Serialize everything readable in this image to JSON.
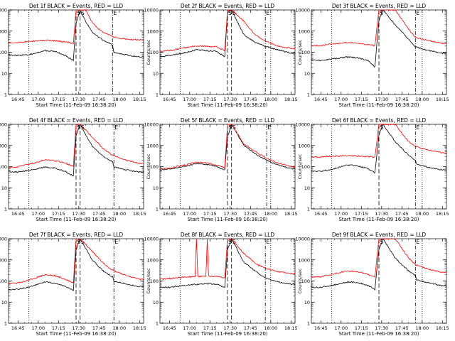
{
  "ticks_y_labels": [
    "1",
    "10",
    "100",
    "1000",
    "10000"
  ],
  "ticks_x_labels": [
    "16:45",
    "17:00",
    "17:15",
    "17:30",
    "17:45",
    "18:00",
    "18:15"
  ],
  "colors": {
    "events": "#000000",
    "lld": "#ff0000"
  },
  "chart_data": [
    {
      "type": "line",
      "title": "Det 1f BLACK = Events, RED = LLD",
      "xlabel": "Start Time (11-Feb-09 16:38:20)",
      "ylabel": "Counts/sec",
      "ylim": [
        1,
        10000
      ],
      "yscale": "log",
      "xlim": [
        "16:38",
        "18:18"
      ],
      "markers": [
        {
          "label": "",
          "x": "16:38",
          "style": "dotted"
        },
        {
          "label": "",
          "x": "16:53",
          "style": "dotted"
        },
        {
          "label": "S",
          "x": "17:28",
          "style": "dashed"
        },
        {
          "label": "S",
          "x": "17:31",
          "style": "dashed"
        },
        {
          "label": "E",
          "x": "17:55",
          "style": "dash-dot"
        }
      ],
      "series": [
        {
          "name": "Events",
          "color": "black",
          "x": [
            "16:38",
            "16:45",
            "16:55",
            "17:05",
            "17:12",
            "17:20",
            "17:26",
            "17:28",
            "17:31",
            "17:35",
            "17:40",
            "17:45",
            "17:50",
            "17:55",
            "17:56",
            "18:05",
            "18:15"
          ],
          "values": [
            75,
            70,
            80,
            120,
            110,
            70,
            40,
            2500,
            9000,
            3000,
            900,
            500,
            320,
            220,
            100,
            75,
            60
          ]
        },
        {
          "name": "LLD",
          "color": "red",
          "x": [
            "16:38",
            "16:45",
            "16:55",
            "17:05",
            "17:12",
            "17:20",
            "17:26",
            "17:28",
            "17:31",
            "17:35",
            "17:40",
            "17:45",
            "17:50",
            "17:55",
            "18:00",
            "18:05",
            "18:15"
          ],
          "values": [
            280,
            290,
            330,
            370,
            350,
            310,
            260,
            10000,
            10000,
            10000,
            2500,
            1200,
            750,
            550,
            450,
            420,
            380
          ]
        }
      ]
    },
    {
      "type": "line",
      "title": "Det 2f BLACK = Events, RED = LLD",
      "xlabel": "Start Time (11-Feb-09 16:38:20)",
      "ylabel": "Counts/sec",
      "ylim": [
        1,
        10000
      ],
      "yscale": "log",
      "xlim": [
        "16:38",
        "18:18"
      ],
      "markers": [
        {
          "label": "",
          "x": "16:53",
          "style": "dotted"
        },
        {
          "label": "S",
          "x": "17:28",
          "style": "dashed"
        },
        {
          "label": "S",
          "x": "17:31",
          "style": "dashed"
        },
        {
          "label": "E",
          "x": "17:56",
          "style": "dash-dot"
        },
        {
          "label": "",
          "x": "18:00",
          "style": "dotted"
        }
      ],
      "series": [
        {
          "name": "Events",
          "color": "black",
          "x": [
            "16:38",
            "16:45",
            "16:55",
            "17:05",
            "17:12",
            "17:20",
            "17:26",
            "17:28",
            "17:31",
            "17:40",
            "17:48",
            "17:55",
            "18:05",
            "18:15"
          ],
          "values": [
            60,
            70,
            90,
            130,
            120,
            110,
            60,
            8000,
            10000,
            700,
            300,
            200,
            130,
            90
          ]
        },
        {
          "name": "LLD",
          "color": "red",
          "x": [
            "16:38",
            "16:45",
            "16:55",
            "17:05",
            "17:12",
            "17:20",
            "17:26",
            "17:28",
            "17:31",
            "17:40",
            "17:48",
            "17:55",
            "18:05",
            "18:15"
          ],
          "values": [
            110,
            120,
            160,
            200,
            190,
            180,
            120,
            10000,
            10000,
            3000,
            700,
            350,
            200,
            150
          ]
        }
      ]
    },
    {
      "type": "line",
      "title": "Det 3f BLACK = Events, RED = LLD",
      "xlabel": "Start Time (11-Feb-09 16:38:20)",
      "ylabel": "Counts/sec",
      "ylim": [
        1,
        10000
      ],
      "yscale": "log",
      "xlim": [
        "16:38",
        "18:18"
      ],
      "markers": [
        {
          "label": "",
          "x": "16:53",
          "style": "dotted"
        },
        {
          "label": "S",
          "x": "17:28",
          "style": "dashed"
        },
        {
          "label": "E",
          "x": "17:55",
          "style": "dash-dot"
        },
        {
          "label": "",
          "x": "18:00",
          "style": "dotted"
        }
      ],
      "series": [
        {
          "name": "Events",
          "color": "black",
          "x": [
            "16:38",
            "16:45",
            "16:55",
            "17:05",
            "17:12",
            "17:20",
            "17:25",
            "17:28",
            "17:31",
            "17:40",
            "17:50",
            "17:55",
            "18:05",
            "18:15"
          ],
          "values": [
            45,
            40,
            50,
            60,
            55,
            40,
            20,
            3000,
            10000,
            2000,
            400,
            180,
            120,
            90
          ]
        },
        {
          "name": "LLD",
          "color": "red",
          "x": [
            "16:38",
            "16:45",
            "16:55",
            "17:05",
            "17:12",
            "17:20",
            "17:25",
            "17:28",
            "17:31",
            "17:40",
            "17:50",
            "17:55",
            "18:05",
            "18:15"
          ],
          "values": [
            200,
            210,
            250,
            290,
            270,
            230,
            200,
            10000,
            10000,
            10000,
            1200,
            500,
            350,
            260
          ]
        }
      ]
    },
    {
      "type": "line",
      "title": "Det 4f BLACK = Events, RED = LLD",
      "xlabel": "Start Time (11-Feb-09 16:38:20)",
      "ylabel": "Counts/sec",
      "ylim": [
        1,
        10000
      ],
      "yscale": "log",
      "xlim": [
        "16:38",
        "18:18"
      ],
      "markers": [
        {
          "label": "",
          "x": "16:53",
          "style": "dotted"
        },
        {
          "label": "S",
          "x": "17:28",
          "style": "dashed"
        },
        {
          "label": "S",
          "x": "17:31",
          "style": "dashed"
        },
        {
          "label": "E",
          "x": "17:56",
          "style": "dash-dot"
        }
      ],
      "series": [
        {
          "name": "Events",
          "color": "black",
          "x": [
            "16:38",
            "16:45",
            "16:55",
            "17:05",
            "17:12",
            "17:20",
            "17:26",
            "17:28",
            "17:31",
            "17:40",
            "17:48",
            "17:55",
            "17:56",
            "18:05",
            "18:15"
          ],
          "values": [
            60,
            55,
            70,
            95,
            85,
            60,
            35,
            3000,
            10000,
            900,
            300,
            170,
            100,
            70,
            55
          ]
        },
        {
          "name": "LLD",
          "color": "red",
          "x": [
            "16:38",
            "16:45",
            "16:55",
            "17:05",
            "17:12",
            "17:20",
            "17:26",
            "17:28",
            "17:31",
            "17:40",
            "17:48",
            "17:55",
            "18:05",
            "18:15"
          ],
          "values": [
            90,
            100,
            140,
            210,
            190,
            150,
            100,
            10000,
            10000,
            2500,
            700,
            350,
            200,
            140
          ]
        }
      ]
    },
    {
      "type": "line",
      "title": "Det 5f BLACK = Events, RED = LLD",
      "xlabel": "Start Time (11-Feb-09 16:38:20)",
      "ylabel": "Counts/sec",
      "ylim": [
        1,
        10000
      ],
      "yscale": "log",
      "xlim": [
        "16:38",
        "18:18"
      ],
      "markers": [
        {
          "label": "",
          "x": "16:53",
          "style": "dotted"
        },
        {
          "label": "S",
          "x": "17:28",
          "style": "dashed"
        },
        {
          "label": "S",
          "x": "17:31",
          "style": "dashed"
        },
        {
          "label": "E",
          "x": "17:57",
          "style": "dash-dot"
        },
        {
          "label": "",
          "x": "18:00",
          "style": "dotted"
        }
      ],
      "series": [
        {
          "name": "Events",
          "color": "black",
          "x": [
            "16:38",
            "16:45",
            "16:55",
            "17:05",
            "17:12",
            "17:20",
            "17:26",
            "17:28",
            "17:31",
            "17:40",
            "17:50",
            "17:57",
            "18:05",
            "18:15"
          ],
          "values": [
            70,
            75,
            100,
            140,
            130,
            100,
            70,
            2500,
            10000,
            1000,
            350,
            200,
            120,
            80
          ]
        },
        {
          "name": "LLD",
          "color": "red",
          "x": [
            "16:38",
            "16:45",
            "16:55",
            "17:05",
            "17:12",
            "17:20",
            "17:26",
            "17:28",
            "17:31",
            "17:40",
            "17:50",
            "17:57",
            "18:05",
            "18:15"
          ],
          "values": [
            80,
            85,
            115,
            160,
            150,
            120,
            85,
            10000,
            10000,
            1200,
            450,
            250,
            150,
            100
          ]
        }
      ]
    },
    {
      "type": "line",
      "title": "Det 6f BLACK = Events, RED = LLD",
      "xlabel": "Start Time (11-Feb-09 16:38:20)",
      "ylabel": "Counts/sec",
      "ylim": [
        1,
        10000
      ],
      "yscale": "log",
      "xlim": [
        "16:38",
        "18:18"
      ],
      "markers": [
        {
          "label": "",
          "x": "16:53",
          "style": "dotted"
        },
        {
          "label": "S",
          "x": "17:28",
          "style": "dashed"
        },
        {
          "label": "E",
          "x": "17:55",
          "style": "dash-dot"
        },
        {
          "label": "",
          "x": "18:00",
          "style": "dotted"
        }
      ],
      "series": [
        {
          "name": "Events",
          "color": "black",
          "x": [
            "16:38",
            "16:45",
            "16:55",
            "17:05",
            "17:12",
            "17:20",
            "17:25",
            "17:28",
            "17:31",
            "17:40",
            "17:50",
            "17:55",
            "17:56",
            "18:05",
            "18:15"
          ],
          "values": [
            60,
            60,
            80,
            120,
            110,
            80,
            50,
            3000,
            10000,
            1500,
            350,
            200,
            130,
            90,
            70
          ]
        },
        {
          "name": "LLD",
          "color": "red",
          "x": [
            "16:38",
            "16:45",
            "16:55",
            "17:05",
            "17:12",
            "17:20",
            "17:25",
            "17:28",
            "17:31",
            "17:40",
            "17:50",
            "17:55",
            "18:05",
            "18:15"
          ],
          "values": [
            280,
            290,
            310,
            330,
            320,
            300,
            280,
            10000,
            10000,
            10000,
            1500,
            900,
            600,
            450
          ]
        }
      ]
    },
    {
      "type": "line",
      "title": "Det 7f BLACK = Events, RED = LLD",
      "xlabel": "Start Time (11-Feb-09 16:38:20)",
      "ylabel": "Counts/sec",
      "ylim": [
        1,
        10000
      ],
      "yscale": "log",
      "xlim": [
        "16:38",
        "18:18"
      ],
      "markers": [
        {
          "label": "",
          "x": "16:53",
          "style": "dotted"
        },
        {
          "label": "S",
          "x": "17:28",
          "style": "dashed"
        },
        {
          "label": "S",
          "x": "17:31",
          "style": "dashed"
        },
        {
          "label": "E",
          "x": "17:56",
          "style": "dash-dot"
        }
      ],
      "series": [
        {
          "name": "Events",
          "color": "black",
          "x": [
            "16:38",
            "16:45",
            "16:55",
            "17:05",
            "17:12",
            "17:20",
            "17:26",
            "17:28",
            "17:31",
            "17:40",
            "17:48",
            "17:55",
            "17:56",
            "18:05",
            "18:15"
          ],
          "values": [
            40,
            40,
            55,
            90,
            80,
            55,
            35,
            3000,
            10000,
            1000,
            300,
            160,
            100,
            70,
            55
          ]
        },
        {
          "name": "LLD",
          "color": "red",
          "x": [
            "16:38",
            "16:45",
            "16:55",
            "17:05",
            "17:12",
            "17:20",
            "17:26",
            "17:28",
            "17:31",
            "17:40",
            "17:48",
            "17:55",
            "18:05",
            "18:15"
          ],
          "values": [
            75,
            80,
            120,
            200,
            180,
            120,
            80,
            10000,
            10000,
            2500,
            700,
            320,
            180,
            120
          ]
        }
      ]
    },
    {
      "type": "line",
      "title": "Det 8f BLACK = Events, RED = LLD",
      "xlabel": "Start Time (11-Feb-09 16:38:20)",
      "ylabel": "Counts/sec",
      "ylim": [
        1,
        10000
      ],
      "yscale": "log",
      "xlim": [
        "16:38",
        "18:18"
      ],
      "markers": [
        {
          "label": "",
          "x": "16:53",
          "style": "dotted"
        },
        {
          "label": "S",
          "x": "17:28",
          "style": "dashed"
        },
        {
          "label": "S",
          "x": "17:31",
          "style": "dashed"
        },
        {
          "label": "E",
          "x": "17:56",
          "style": "dash-dot"
        },
        {
          "label": "",
          "x": "18:00",
          "style": "dotted"
        }
      ],
      "series": [
        {
          "name": "Events",
          "color": "black",
          "x": [
            "16:38",
            "16:45",
            "16:55",
            "17:05",
            "17:12",
            "17:20",
            "17:26",
            "17:28",
            "17:31",
            "17:40",
            "17:50",
            "17:56",
            "18:05",
            "18:15"
          ],
          "values": [
            50,
            50,
            60,
            70,
            75,
            70,
            50,
            3000,
            10000,
            800,
            250,
            140,
            90,
            70
          ]
        },
        {
          "name": "LLD",
          "color": "red",
          "x": [
            "16:38",
            "16:45",
            "16:55",
            "17:04",
            "17:05",
            "17:06",
            "17:12",
            "17:13",
            "17:14",
            "17:20",
            "17:26",
            "17:28",
            "17:31",
            "17:40",
            "17:50",
            "17:56",
            "18:05",
            "18:15"
          ],
          "values": [
            120,
            130,
            150,
            160,
            10000,
            160,
            170,
            10000,
            170,
            160,
            140,
            10000,
            10000,
            2000,
            600,
            400,
            280,
            220
          ]
        }
      ]
    },
    {
      "type": "line",
      "title": "Det 9f BLACK = Events, RED = LLD",
      "xlabel": "Start Time (11-Feb-09 16:38:20)",
      "ylabel": "Counts/sec",
      "ylim": [
        1,
        10000
      ],
      "yscale": "log",
      "xlim": [
        "16:38",
        "18:18"
      ],
      "markers": [
        {
          "label": "",
          "x": "16:53",
          "style": "dotted"
        },
        {
          "label": "S",
          "x": "17:28",
          "style": "dashed"
        },
        {
          "label": "E",
          "x": "17:55",
          "style": "dash-dot"
        },
        {
          "label": "",
          "x": "18:00",
          "style": "dotted"
        }
      ],
      "series": [
        {
          "name": "Events",
          "color": "black",
          "x": [
            "16:38",
            "16:45",
            "16:55",
            "17:05",
            "17:12",
            "17:20",
            "17:25",
            "17:28",
            "17:31",
            "17:40",
            "17:50",
            "17:55",
            "17:56",
            "18:05",
            "18:15"
          ],
          "values": [
            50,
            50,
            65,
            90,
            85,
            60,
            40,
            3000,
            10000,
            1200,
            300,
            180,
            110,
            80,
            60
          ]
        },
        {
          "name": "LLD",
          "color": "red",
          "x": [
            "16:38",
            "16:45",
            "16:55",
            "17:05",
            "17:12",
            "17:20",
            "17:25",
            "17:28",
            "17:31",
            "17:40",
            "17:50",
            "17:55",
            "18:05",
            "18:15"
          ],
          "values": [
            150,
            160,
            220,
            300,
            280,
            200,
            150,
            10000,
            10000,
            10000,
            1200,
            600,
            350,
            260
          ]
        }
      ]
    }
  ]
}
